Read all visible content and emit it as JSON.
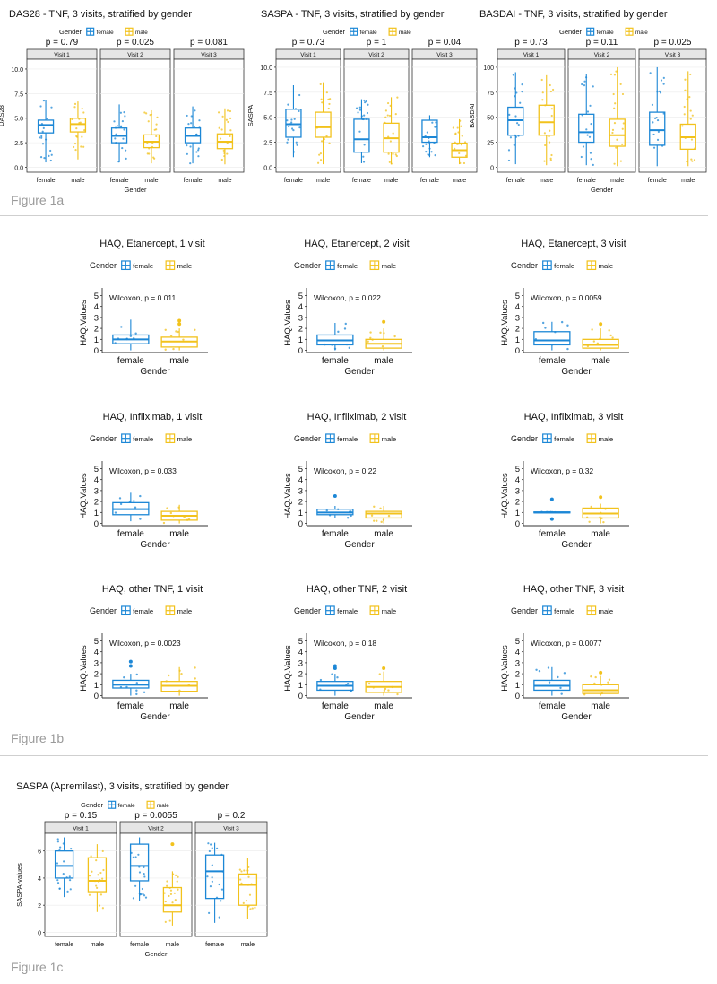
{
  "colors": {
    "female": "#1c87d6",
    "male": "#f2c21c",
    "strip": "#e6e6e6",
    "frame": "#333333",
    "grid": "#ebebeb"
  },
  "figures": {
    "fig1a": {
      "label": "Figure 1a"
    },
    "fig1b": {
      "label": "Figure 1b"
    },
    "fig1c": {
      "label": "Figure 1c"
    }
  },
  "chart_data": [
    {
      "id": "das28",
      "type": "box",
      "title": "DAS28 - TNF, 3 visits, stratified by gender",
      "legend": {
        "title": "Gender",
        "entries": [
          "female",
          "male"
        ],
        "position": "top"
      },
      "ylabel": "DAS28",
      "xlabel": "Gender",
      "ylim": [
        -0.5,
        11
      ],
      "yticks": [
        0.0,
        2.5,
        5.0,
        7.5,
        10.0
      ],
      "yticklabels": [
        "0.0",
        "2.5",
        "5.0",
        "7.5",
        "10.0"
      ],
      "categories": [
        "female",
        "male"
      ],
      "panels": [
        {
          "strip": "Visit 1",
          "pvalue": "p = 0.79",
          "boxes": [
            {
              "group": "female",
              "q1": 3.5,
              "median": 4.3,
              "q3": 4.8,
              "whislo": 0.5,
              "whishi": 6.8
            },
            {
              "group": "male",
              "q1": 3.6,
              "median": 4.4,
              "q3": 5.0,
              "whislo": 0.8,
              "whishi": 6.7
            }
          ]
        },
        {
          "strip": "Visit 2",
          "pvalue": "p = 0.025",
          "boxes": [
            {
              "group": "female",
              "q1": 2.5,
              "median": 3.2,
              "q3": 4.0,
              "whislo": 0.5,
              "whishi": 6.4
            },
            {
              "group": "male",
              "q1": 2.0,
              "median": 2.6,
              "q3": 3.3,
              "whislo": 0.4,
              "whishi": 5.8
            }
          ]
        },
        {
          "strip": "Visit 3",
          "pvalue": "p = 0.081",
          "boxes": [
            {
              "group": "female",
              "q1": 2.5,
              "median": 3.2,
              "q3": 4.0,
              "whislo": 0.4,
              "whishi": 6.2
            },
            {
              "group": "male",
              "q1": 1.9,
              "median": 2.6,
              "q3": 3.4,
              "whislo": 0.3,
              "whishi": 6.0
            }
          ]
        }
      ]
    },
    {
      "id": "saspa-tnf",
      "type": "box",
      "title": "SASPA - TNF, 3 visits, stratified by gender",
      "legend": {
        "title": "Gender",
        "entries": [
          "female",
          "male"
        ],
        "position": "top"
      },
      "ylabel": "SASPA",
      "xlabel": "",
      "ylim": [
        -0.5,
        10.8
      ],
      "yticks": [
        0.0,
        2.5,
        5.0,
        7.5,
        10.0
      ],
      "yticklabels": [
        "0.0",
        "2.5",
        "5.0",
        "7.5",
        "10.0"
      ],
      "categories": [
        "female",
        "male"
      ],
      "panels": [
        {
          "strip": "Visit 1",
          "pvalue": "p = 0.73",
          "boxes": [
            {
              "group": "female",
              "q1": 3.0,
              "median": 4.3,
              "q3": 5.8,
              "whislo": 1.0,
              "whishi": 8.2
            },
            {
              "group": "male",
              "q1": 3.0,
              "median": 4.0,
              "q3": 5.5,
              "whislo": 0.3,
              "whishi": 8.5
            }
          ]
        },
        {
          "strip": "Visit 2",
          "pvalue": "p = 1",
          "boxes": [
            {
              "group": "female",
              "q1": 1.5,
              "median": 2.8,
              "q3": 4.8,
              "whislo": 0.4,
              "whishi": 6.8
            },
            {
              "group": "male",
              "q1": 1.5,
              "median": 2.9,
              "q3": 4.4,
              "whislo": 0.3,
              "whishi": 7.0
            }
          ]
        },
        {
          "strip": "Visit 3",
          "pvalue": "p = 0.04",
          "boxes": [
            {
              "group": "female",
              "q1": 2.5,
              "median": 3.0,
              "q3": 4.7,
              "whislo": 1.0,
              "whishi": 5.2
            },
            {
              "group": "male",
              "q1": 1.0,
              "median": 1.7,
              "q3": 2.4,
              "whislo": 0.3,
              "whishi": 4.8
            }
          ]
        }
      ]
    },
    {
      "id": "basdai",
      "type": "box",
      "title": "BASDAI - TNF, 3 visits, stratified by gender",
      "legend": {
        "title": "Gender",
        "entries": [
          "female",
          "male"
        ],
        "position": "top"
      },
      "ylabel": "BASDAI",
      "xlabel": "Gender",
      "ylim": [
        -5,
        108
      ],
      "yticks": [
        0,
        25,
        50,
        75,
        100
      ],
      "yticklabels": [
        "0",
        "25",
        "50",
        "75",
        "100"
      ],
      "categories": [
        "female",
        "male"
      ],
      "panels": [
        {
          "strip": "Visit 1",
          "pvalue": "p = 0.73",
          "boxes": [
            {
              "group": "female",
              "q1": 32,
              "median": 47,
              "q3": 60,
              "whislo": 3,
              "whishi": 95
            },
            {
              "group": "male",
              "q1": 32,
              "median": 45,
              "q3": 62,
              "whislo": 2,
              "whishi": 92
            }
          ]
        },
        {
          "strip": "Visit 2",
          "pvalue": "p = 0.11",
          "boxes": [
            {
              "group": "female",
              "q1": 25,
              "median": 35,
              "q3": 53,
              "whislo": 2,
              "whishi": 93
            },
            {
              "group": "male",
              "q1": 21,
              "median": 32,
              "q3": 48,
              "whislo": 1,
              "whishi": 100
            }
          ]
        },
        {
          "strip": "Visit 3",
          "pvalue": "p = 0.025",
          "boxes": [
            {
              "group": "female",
              "q1": 22,
              "median": 37,
              "q3": 55,
              "whislo": 1,
              "whishi": 100
            },
            {
              "group": "male",
              "q1": 18,
              "median": 30,
              "q3": 43,
              "whislo": 1,
              "whishi": 96
            }
          ]
        }
      ]
    },
    {
      "id": "haq-eta-1",
      "type": "box",
      "title": "HAQ, Etanercept, 1 visit",
      "legend": {
        "title": "Gender",
        "entries": [
          "female",
          "male"
        ],
        "position": "top"
      },
      "ylabel": "HAQ.Values",
      "xlabel": "Gender",
      "annotation": "Wilcoxon, p = 0.011",
      "ylim": [
        -0.2,
        5.2
      ],
      "yticks": [
        0,
        1,
        2,
        3,
        4,
        5
      ],
      "categories": [
        "female",
        "male"
      ],
      "boxes": [
        {
          "group": "female",
          "q1": 0.6,
          "median": 1.0,
          "q3": 1.4,
          "whislo": 0.0,
          "whishi": 2.8
        },
        {
          "group": "male",
          "q1": 0.3,
          "median": 0.8,
          "q3": 1.2,
          "whislo": 0.0,
          "whishi": 2.0,
          "outliers": [
            2.4,
            2.7
          ]
        }
      ]
    },
    {
      "id": "haq-eta-2",
      "type": "box",
      "title": "HAQ, Etanercept, 2 visit",
      "legend": {
        "title": "Gender",
        "entries": [
          "female",
          "male"
        ],
        "position": "top"
      },
      "ylabel": "HAQ.Values",
      "xlabel": "Gender",
      "annotation": "Wilcoxon, p = 0.022",
      "ylim": [
        -0.2,
        5.2
      ],
      "yticks": [
        0,
        1,
        2,
        3,
        4,
        5
      ],
      "categories": [
        "female",
        "male"
      ],
      "boxes": [
        {
          "group": "female",
          "q1": 0.5,
          "median": 0.9,
          "q3": 1.4,
          "whislo": 0.0,
          "whishi": 2.5
        },
        {
          "group": "male",
          "q1": 0.2,
          "median": 0.6,
          "q3": 1.0,
          "whislo": 0.0,
          "whishi": 2.0,
          "outliers": [
            2.6
          ]
        }
      ]
    },
    {
      "id": "haq-eta-3",
      "type": "box",
      "title": "HAQ, Etanercept, 3 visit",
      "legend": {
        "title": "Gender",
        "entries": [
          "female",
          "male"
        ],
        "position": "top"
      },
      "ylabel": "HAQ.Values",
      "xlabel": "Gender",
      "annotation": "Wilcoxon, p = 0.0059",
      "ylim": [
        -0.2,
        5.2
      ],
      "yticks": [
        0,
        1,
        2,
        3,
        4,
        5
      ],
      "categories": [
        "female",
        "male"
      ],
      "boxes": [
        {
          "group": "female",
          "q1": 0.5,
          "median": 0.9,
          "q3": 1.7,
          "whislo": 0.0,
          "whishi": 2.6
        },
        {
          "group": "male",
          "q1": 0.2,
          "median": 0.5,
          "q3": 1.0,
          "whislo": 0.0,
          "whishi": 2.0,
          "outliers": [
            2.4
          ]
        }
      ]
    },
    {
      "id": "haq-inf-1",
      "type": "box",
      "title": "HAQ, Infliximab, 1 visit",
      "legend": {
        "title": "Gender",
        "entries": [
          "female",
          "male"
        ],
        "position": "top"
      },
      "ylabel": "HAQ.Values",
      "xlabel": "Gender",
      "annotation": "Wilcoxon, p = 0.033",
      "ylim": [
        -0.2,
        5.2
      ],
      "yticks": [
        0,
        1,
        2,
        3,
        4,
        5
      ],
      "categories": [
        "female",
        "male"
      ],
      "boxes": [
        {
          "group": "female",
          "q1": 0.8,
          "median": 1.3,
          "q3": 1.9,
          "whislo": 0.2,
          "whishi": 2.8
        },
        {
          "group": "male",
          "q1": 0.3,
          "median": 0.7,
          "q3": 1.1,
          "whislo": 0.0,
          "whishi": 1.7
        }
      ]
    },
    {
      "id": "haq-inf-2",
      "type": "box",
      "title": "HAQ, Infliximab, 2 visit",
      "legend": {
        "title": "Gender",
        "entries": [
          "female",
          "male"
        ],
        "position": "top"
      },
      "ylabel": "HAQ.Values",
      "xlabel": "Gender",
      "annotation": "Wilcoxon, p = 0.22",
      "ylim": [
        -0.2,
        5.2
      ],
      "yticks": [
        0,
        1,
        2,
        3,
        4,
        5
      ],
      "categories": [
        "female",
        "male"
      ],
      "boxes": [
        {
          "group": "female",
          "q1": 0.8,
          "median": 1.0,
          "q3": 1.3,
          "whislo": 0.5,
          "whishi": 1.6,
          "outliers": [
            2.5
          ]
        },
        {
          "group": "male",
          "q1": 0.5,
          "median": 0.9,
          "q3": 1.1,
          "whislo": 0.0,
          "whishi": 1.6
        }
      ]
    },
    {
      "id": "haq-inf-3",
      "type": "box",
      "title": "HAQ, Infliximab, 3 visit",
      "legend": {
        "title": "Gender",
        "entries": [
          "female",
          "male"
        ],
        "position": "top"
      },
      "ylabel": "HAQ.Values",
      "xlabel": "Gender",
      "annotation": "Wilcoxon, p = 0.32",
      "ylim": [
        -0.2,
        5.2
      ],
      "yticks": [
        0,
        1,
        2,
        3,
        4,
        5
      ],
      "categories": [
        "female",
        "male"
      ],
      "boxes": [
        {
          "group": "female",
          "q1": 1.0,
          "median": 1.0,
          "q3": 1.05,
          "whislo": 1.0,
          "whishi": 1.05,
          "outliers": [
            0.4,
            2.2
          ]
        },
        {
          "group": "male",
          "q1": 0.5,
          "median": 0.9,
          "q3": 1.4,
          "whislo": 0.0,
          "whishi": 1.8,
          "outliers": [
            2.4
          ]
        }
      ]
    },
    {
      "id": "haq-oth-1",
      "type": "box",
      "title": "HAQ, other TNF, 1 visit",
      "legend": {
        "title": "Gender",
        "entries": [
          "female",
          "male"
        ],
        "position": "top"
      },
      "ylabel": "HAQ.Values",
      "xlabel": "Gender",
      "annotation": "Wilcoxon, p = 0.0023",
      "ylim": [
        -0.2,
        5.2
      ],
      "yticks": [
        0,
        1,
        2,
        3,
        4,
        5
      ],
      "categories": [
        "female",
        "male"
      ],
      "boxes": [
        {
          "group": "female",
          "q1": 0.7,
          "median": 1.0,
          "q3": 1.4,
          "whislo": 0.0,
          "whishi": 2.0,
          "outliers": [
            2.7,
            3.1
          ]
        },
        {
          "group": "male",
          "q1": 0.4,
          "median": 0.9,
          "q3": 1.3,
          "whislo": 0.0,
          "whishi": 2.6
        }
      ]
    },
    {
      "id": "haq-oth-2",
      "type": "box",
      "title": "HAQ, other TNF, 2 visit",
      "legend": {
        "title": "Gender",
        "entries": [
          "female",
          "male"
        ],
        "position": "top"
      },
      "ylabel": "HAQ.Values",
      "xlabel": "Gender",
      "annotation": "Wilcoxon, p = 0.18",
      "ylim": [
        -0.2,
        5.2
      ],
      "yticks": [
        0,
        1,
        2,
        3,
        4,
        5
      ],
      "categories": [
        "female",
        "male"
      ],
      "boxes": [
        {
          "group": "female",
          "q1": 0.5,
          "median": 0.9,
          "q3": 1.3,
          "whislo": 0.0,
          "whishi": 2.0,
          "outliers": [
            2.5,
            2.7
          ]
        },
        {
          "group": "male",
          "q1": 0.3,
          "median": 0.8,
          "q3": 1.3,
          "whislo": 0.0,
          "whishi": 2.2,
          "outliers": [
            2.5
          ]
        }
      ]
    },
    {
      "id": "haq-oth-3",
      "type": "box",
      "title": "HAQ, other TNF, 3 visit",
      "legend": {
        "title": "Gender",
        "entries": [
          "female",
          "male"
        ],
        "position": "top"
      },
      "ylabel": "HAQ.Values",
      "xlabel": "Gender",
      "annotation": "Wilcoxon, p = 0.0077",
      "ylim": [
        -0.2,
        5.2
      ],
      "yticks": [
        0,
        1,
        2,
        3,
        4,
        5
      ],
      "categories": [
        "female",
        "male"
      ],
      "boxes": [
        {
          "group": "female",
          "q1": 0.5,
          "median": 0.9,
          "q3": 1.4,
          "whislo": 0.0,
          "whishi": 2.6
        },
        {
          "group": "male",
          "q1": 0.2,
          "median": 0.5,
          "q3": 1.0,
          "whislo": 0.0,
          "whishi": 1.8,
          "outliers": [
            2.1
          ]
        }
      ]
    },
    {
      "id": "saspa-apremilast",
      "type": "box",
      "title": "SASPA (Apremilast), 3 visits, stratified by gender",
      "legend": {
        "title": "Gender",
        "entries": [
          "female",
          "male"
        ],
        "position": "top"
      },
      "ylabel": "SASPA-values",
      "xlabel": "Gender",
      "ylim": [
        -0.3,
        7.3
      ],
      "yticks": [
        0,
        2,
        4,
        6
      ],
      "yticklabels": [
        "0",
        "2",
        "4",
        "6"
      ],
      "categories": [
        "female",
        "male"
      ],
      "panels": [
        {
          "strip": "Visit 1",
          "pvalue": "p = 0.15",
          "boxes": [
            {
              "group": "female",
              "q1": 4.0,
              "median": 4.9,
              "q3": 6.0,
              "whislo": 2.6,
              "whishi": 7.0
            },
            {
              "group": "male",
              "q1": 3.0,
              "median": 3.8,
              "q3": 5.5,
              "whislo": 1.5,
              "whishi": 6.5
            }
          ]
        },
        {
          "strip": "Visit 2",
          "pvalue": "p = 0.0055",
          "boxes": [
            {
              "group": "female",
              "q1": 3.8,
              "median": 4.9,
              "q3": 6.5,
              "whislo": 2.3,
              "whishi": 7.0
            },
            {
              "group": "male",
              "q1": 1.5,
              "median": 2.0,
              "q3": 3.3,
              "whislo": 0.5,
              "whishi": 4.5,
              "outliers": [
                6.5
              ]
            }
          ]
        },
        {
          "strip": "Visit 3",
          "pvalue": "p = 0.2",
          "boxes": [
            {
              "group": "female",
              "q1": 2.5,
              "median": 4.5,
              "q3": 5.7,
              "whislo": 0.7,
              "whishi": 6.6
            },
            {
              "group": "male",
              "q1": 2.0,
              "median": 3.5,
              "q3": 4.3,
              "whislo": 1.0,
              "whishi": 5.5
            }
          ]
        }
      ]
    }
  ]
}
